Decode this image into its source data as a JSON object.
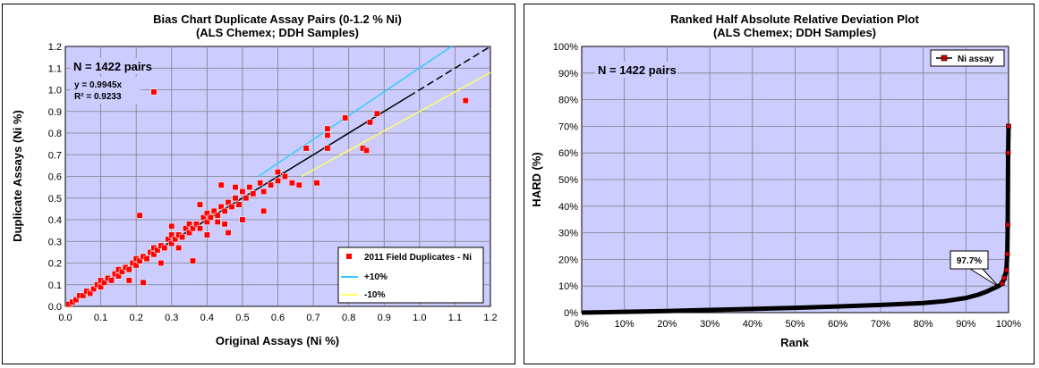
{
  "chart_data": [
    {
      "type": "scatter",
      "title": "Bias Chart Duplicate Assay Pairs (0-1.2 % Ni)",
      "subtitle": "(ALS Chemex; DDH Samples)",
      "xlabel": "Original Assays (Ni %)",
      "ylabel": "Duplicate Assays (Ni %)",
      "xlim": [
        0,
        1.2
      ],
      "ylim": [
        0,
        1.2
      ],
      "x_ticks": [
        "0.0",
        "0.1",
        "0.2",
        "0.3",
        "0.4",
        "0.5",
        "0.6",
        "0.7",
        "0.8",
        "0.9",
        "1.0",
        "1.1",
        "1.2"
      ],
      "y_ticks": [
        "0.0",
        "0.1",
        "0.2",
        "0.3",
        "0.4",
        "0.5",
        "0.6",
        "0.7",
        "0.8",
        "0.9",
        "1.0",
        "1.1",
        "1.2"
      ],
      "grid": true,
      "plot_background": "#ccccff",
      "annotations": {
        "n_pairs": "N = 1422 pairs",
        "equation": "y = 0.9945x",
        "r_squared": "R² = 0.9233"
      },
      "legend_position": "bottom-right",
      "series": [
        {
          "name": "2011 Field Duplicates - Ni",
          "color": "#ff0000",
          "points": [
            [
              0.01,
              0.01
            ],
            [
              0.02,
              0.02
            ],
            [
              0.03,
              0.03
            ],
            [
              0.04,
              0.05
            ],
            [
              0.05,
              0.05
            ],
            [
              0.06,
              0.07
            ],
            [
              0.07,
              0.06
            ],
            [
              0.08,
              0.08
            ],
            [
              0.09,
              0.1
            ],
            [
              0.1,
              0.09
            ],
            [
              0.1,
              0.12
            ],
            [
              0.11,
              0.11
            ],
            [
              0.12,
              0.13
            ],
            [
              0.13,
              0.12
            ],
            [
              0.14,
              0.15
            ],
            [
              0.15,
              0.14
            ],
            [
              0.15,
              0.17
            ],
            [
              0.16,
              0.16
            ],
            [
              0.17,
              0.18
            ],
            [
              0.18,
              0.17
            ],
            [
              0.19,
              0.2
            ],
            [
              0.2,
              0.19
            ],
            [
              0.2,
              0.22
            ],
            [
              0.21,
              0.21
            ],
            [
              0.22,
              0.23
            ],
            [
              0.23,
              0.22
            ],
            [
              0.24,
              0.25
            ],
            [
              0.25,
              0.24
            ],
            [
              0.25,
              0.27
            ],
            [
              0.26,
              0.26
            ],
            [
              0.27,
              0.28
            ],
            [
              0.28,
              0.27
            ],
            [
              0.29,
              0.31
            ],
            [
              0.3,
              0.29
            ],
            [
              0.3,
              0.33
            ],
            [
              0.31,
              0.31
            ],
            [
              0.32,
              0.33
            ],
            [
              0.33,
              0.32
            ],
            [
              0.34,
              0.36
            ],
            [
              0.35,
              0.34
            ],
            [
              0.35,
              0.38
            ],
            [
              0.36,
              0.36
            ],
            [
              0.37,
              0.38
            ],
            [
              0.38,
              0.36
            ],
            [
              0.39,
              0.41
            ],
            [
              0.4,
              0.39
            ],
            [
              0.4,
              0.43
            ],
            [
              0.41,
              0.41
            ],
            [
              0.42,
              0.44
            ],
            [
              0.43,
              0.42
            ],
            [
              0.44,
              0.46
            ],
            [
              0.45,
              0.44
            ],
            [
              0.46,
              0.48
            ],
            [
              0.47,
              0.46
            ],
            [
              0.48,
              0.5
            ],
            [
              0.49,
              0.47
            ],
            [
              0.5,
              0.53
            ],
            [
              0.51,
              0.5
            ],
            [
              0.52,
              0.55
            ],
            [
              0.53,
              0.52
            ],
            [
              0.55,
              0.57
            ],
            [
              0.56,
              0.53
            ],
            [
              0.58,
              0.56
            ],
            [
              0.6,
              0.58
            ],
            [
              0.62,
              0.6
            ],
            [
              0.64,
              0.57
            ],
            [
              0.66,
              0.56
            ],
            [
              0.68,
              0.73
            ],
            [
              0.71,
              0.57
            ],
            [
              0.74,
              0.79
            ],
            [
              0.74,
              0.82
            ],
            [
              0.79,
              0.87
            ],
            [
              0.84,
              0.73
            ],
            [
              0.85,
              0.72
            ],
            [
              0.86,
              0.85
            ],
            [
              0.88,
              0.89
            ],
            [
              0.74,
              0.73
            ],
            [
              0.25,
              0.99
            ],
            [
              0.21,
              0.42
            ],
            [
              0.22,
              0.11
            ],
            [
              0.36,
              0.21
            ],
            [
              0.44,
              0.56
            ],
            [
              0.46,
              0.34
            ],
            [
              0.5,
              0.4
            ],
            [
              0.56,
              0.44
            ],
            [
              0.6,
              0.62
            ],
            [
              0.18,
              0.12
            ],
            [
              0.27,
              0.2
            ],
            [
              0.32,
              0.27
            ],
            [
              0.3,
              0.37
            ],
            [
              0.4,
              0.33
            ],
            [
              0.43,
              0.39
            ],
            [
              0.48,
              0.55
            ],
            [
              0.38,
              0.47
            ],
            [
              0.45,
              0.38
            ],
            [
              1.13,
              0.95
            ]
          ]
        },
        {
          "name": "+10%",
          "color": "#33ccff",
          "line": [
            [
              0.545,
              0.6
            ],
            [
              1.09,
              1.2
            ]
          ]
        },
        {
          "name": "-10%",
          "color": "#ffff66",
          "line": [
            [
              0.667,
              0.6
            ],
            [
              1.2,
              1.08
            ]
          ]
        },
        {
          "name": "1:1",
          "color": "#000000",
          "line": [
            [
              0,
              0
            ],
            [
              1.2,
              1.2
            ]
          ]
        }
      ]
    },
    {
      "type": "line",
      "title": "Ranked Half Absolute Relative Deviation Plot",
      "subtitle": "(ALS Chemex; DDH Samples)",
      "xlabel": "Rank",
      "ylabel": "HARD (%)",
      "xlim": [
        0,
        100
      ],
      "ylim": [
        0,
        100
      ],
      "x_ticks": [
        "0%",
        "10%",
        "20%",
        "30%",
        "40%",
        "50%",
        "60%",
        "70%",
        "80%",
        "90%",
        "100%"
      ],
      "y_ticks": [
        "0%",
        "10%",
        "20%",
        "30%",
        "40%",
        "50%",
        "60%",
        "70%",
        "80%",
        "90%",
        "100%"
      ],
      "grid": true,
      "plot_background": "#ccccff",
      "annotations": {
        "n_pairs": "N = 1422 pairs",
        "callout": "97.7%"
      },
      "legend_position": "top-right",
      "series": [
        {
          "name": "Ni assay",
          "color": "#000000",
          "marker_color": "#cc0000",
          "x": [
            0,
            10,
            20,
            30,
            40,
            50,
            60,
            70,
            80,
            85,
            90,
            93,
            95,
            97,
            97.7,
            98.5,
            99,
            99.5,
            99.7,
            99.8,
            99.9,
            100
          ],
          "y": [
            0,
            0.3,
            0.6,
            1.0,
            1.4,
            1.8,
            2.3,
            2.9,
            3.6,
            4.3,
            5.5,
            6.8,
            8,
            9.5,
            10,
            11,
            13,
            16,
            22,
            33,
            60,
            70
          ]
        }
      ]
    }
  ]
}
